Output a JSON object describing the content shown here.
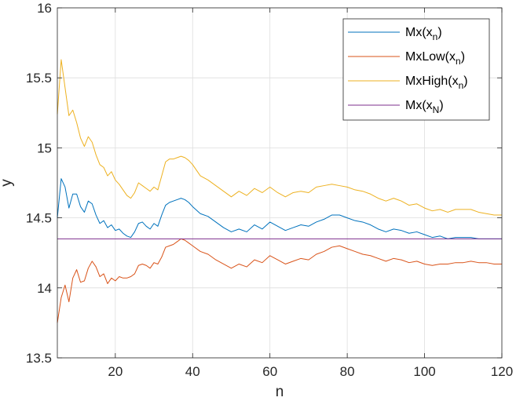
{
  "chart_data": {
    "type": "line",
    "xlabel": "n",
    "ylabel": "y",
    "xlim": [
      5,
      120
    ],
    "ylim": [
      13.5,
      16
    ],
    "xticks": [
      20,
      40,
      60,
      80,
      100,
      120
    ],
    "yticks": [
      13.5,
      14,
      14.5,
      15,
      15.5,
      16
    ],
    "xtick_labels": [
      "20",
      "40",
      "60",
      "80",
      "100",
      "120"
    ],
    "ytick_labels": [
      "13.5",
      "14",
      "14.5",
      "15",
      "15.5",
      "16"
    ],
    "grid": true,
    "legend_position": "top-right",
    "series": [
      {
        "name": "Mx(x_n)",
        "legend_main": "Mx(x",
        "legend_sub": "n",
        "legend_tail": ")",
        "color": "#0072BD",
        "x": [
          5,
          6,
          7,
          8,
          9,
          10,
          11,
          12,
          13,
          14,
          15,
          16,
          17,
          18,
          19,
          20,
          21,
          22,
          23,
          24,
          25,
          26,
          27,
          28,
          29,
          30,
          31,
          32,
          33,
          34,
          35,
          36,
          37,
          38,
          39,
          40,
          42,
          44,
          46,
          48,
          50,
          52,
          54,
          56,
          58,
          60,
          62,
          64,
          66,
          68,
          70,
          72,
          74,
          76,
          78,
          80,
          82,
          84,
          86,
          88,
          90,
          92,
          94,
          96,
          98,
          100,
          102,
          104,
          106,
          108,
          110,
          112,
          114,
          116,
          118,
          120
        ],
        "y": [
          14.5,
          14.78,
          14.72,
          14.57,
          14.67,
          14.67,
          14.58,
          14.54,
          14.62,
          14.6,
          14.52,
          14.46,
          14.48,
          14.43,
          14.45,
          14.41,
          14.42,
          14.39,
          14.37,
          14.36,
          14.4,
          14.46,
          14.47,
          14.44,
          14.42,
          14.46,
          14.44,
          14.52,
          14.59,
          14.61,
          14.62,
          14.63,
          14.64,
          14.63,
          14.61,
          14.58,
          14.53,
          14.51,
          14.47,
          14.43,
          14.4,
          14.42,
          14.4,
          14.45,
          14.42,
          14.47,
          14.44,
          14.41,
          14.43,
          14.45,
          14.44,
          14.47,
          14.49,
          14.52,
          14.52,
          14.5,
          14.48,
          14.47,
          14.45,
          14.42,
          14.4,
          14.42,
          14.41,
          14.39,
          14.4,
          14.38,
          14.36,
          14.37,
          14.35,
          14.36,
          14.36,
          14.36,
          14.35,
          14.35,
          14.35,
          14.35
        ]
      },
      {
        "name": "MxLow(x_n)",
        "legend_main": "MxLow(x",
        "legend_sub": "n",
        "legend_tail": ")",
        "color": "#D95319",
        "x": [
          5,
          6,
          7,
          8,
          9,
          10,
          11,
          12,
          13,
          14,
          15,
          16,
          17,
          18,
          19,
          20,
          21,
          22,
          23,
          24,
          25,
          26,
          27,
          28,
          29,
          30,
          31,
          32,
          33,
          34,
          35,
          36,
          37,
          38,
          39,
          40,
          42,
          44,
          46,
          48,
          50,
          52,
          54,
          56,
          58,
          60,
          62,
          64,
          66,
          68,
          70,
          72,
          74,
          76,
          78,
          80,
          82,
          84,
          86,
          88,
          90,
          92,
          94,
          96,
          98,
          100,
          102,
          104,
          106,
          108,
          110,
          112,
          114,
          116,
          118,
          120
        ],
        "y": [
          13.75,
          13.93,
          14.02,
          13.9,
          14.07,
          14.13,
          14.04,
          14.05,
          14.14,
          14.19,
          14.15,
          14.08,
          14.1,
          14.03,
          14.07,
          14.05,
          14.08,
          14.07,
          14.07,
          14.08,
          14.1,
          14.16,
          14.17,
          14.16,
          14.14,
          14.18,
          14.17,
          14.22,
          14.29,
          14.3,
          14.31,
          14.33,
          14.35,
          14.34,
          14.32,
          14.3,
          14.26,
          14.24,
          14.2,
          14.17,
          14.14,
          14.17,
          14.15,
          14.2,
          14.18,
          14.23,
          14.2,
          14.17,
          14.19,
          14.21,
          14.2,
          14.24,
          14.26,
          14.29,
          14.3,
          14.28,
          14.26,
          14.24,
          14.23,
          14.21,
          14.19,
          14.21,
          14.2,
          14.18,
          14.19,
          14.17,
          14.16,
          14.17,
          14.17,
          14.18,
          14.18,
          14.19,
          14.18,
          14.18,
          14.17,
          14.17
        ]
      },
      {
        "name": "MxHigh(x_n)",
        "legend_main": "MxHigh(x",
        "legend_sub": "n",
        "legend_tail": ")",
        "color": "#EDB120",
        "x": [
          5,
          6,
          7,
          8,
          9,
          10,
          11,
          12,
          13,
          14,
          15,
          16,
          17,
          18,
          19,
          20,
          21,
          22,
          23,
          24,
          25,
          26,
          27,
          28,
          29,
          30,
          31,
          32,
          33,
          34,
          35,
          36,
          37,
          38,
          39,
          40,
          42,
          44,
          46,
          48,
          50,
          52,
          54,
          56,
          58,
          60,
          62,
          64,
          66,
          68,
          70,
          72,
          74,
          76,
          78,
          80,
          82,
          84,
          86,
          88,
          90,
          92,
          94,
          96,
          98,
          100,
          102,
          104,
          106,
          108,
          110,
          112,
          114,
          116,
          118,
          120
        ],
        "y": [
          15.24,
          15.63,
          15.43,
          15.23,
          15.27,
          15.18,
          15.07,
          15.01,
          15.08,
          15.04,
          14.95,
          14.88,
          14.86,
          14.8,
          14.83,
          14.77,
          14.74,
          14.7,
          14.66,
          14.64,
          14.68,
          14.75,
          14.73,
          14.71,
          14.69,
          14.72,
          14.7,
          14.8,
          14.9,
          14.92,
          14.92,
          14.93,
          14.94,
          14.93,
          14.91,
          14.88,
          14.8,
          14.77,
          14.73,
          14.69,
          14.65,
          14.69,
          14.66,
          14.71,
          14.68,
          14.72,
          14.68,
          14.65,
          14.68,
          14.69,
          14.68,
          14.72,
          14.73,
          14.74,
          14.73,
          14.72,
          14.7,
          14.69,
          14.67,
          14.64,
          14.62,
          14.64,
          14.62,
          14.59,
          14.6,
          14.57,
          14.55,
          14.56,
          14.54,
          14.56,
          14.56,
          14.56,
          14.54,
          14.53,
          14.52,
          14.52
        ]
      },
      {
        "name": "Mx(x_N)",
        "legend_main": "Mx(x",
        "legend_sub": "N",
        "legend_tail": ")",
        "color": "#7E2F8E",
        "x": [
          5,
          120
        ],
        "y": [
          14.35,
          14.35
        ]
      }
    ]
  }
}
